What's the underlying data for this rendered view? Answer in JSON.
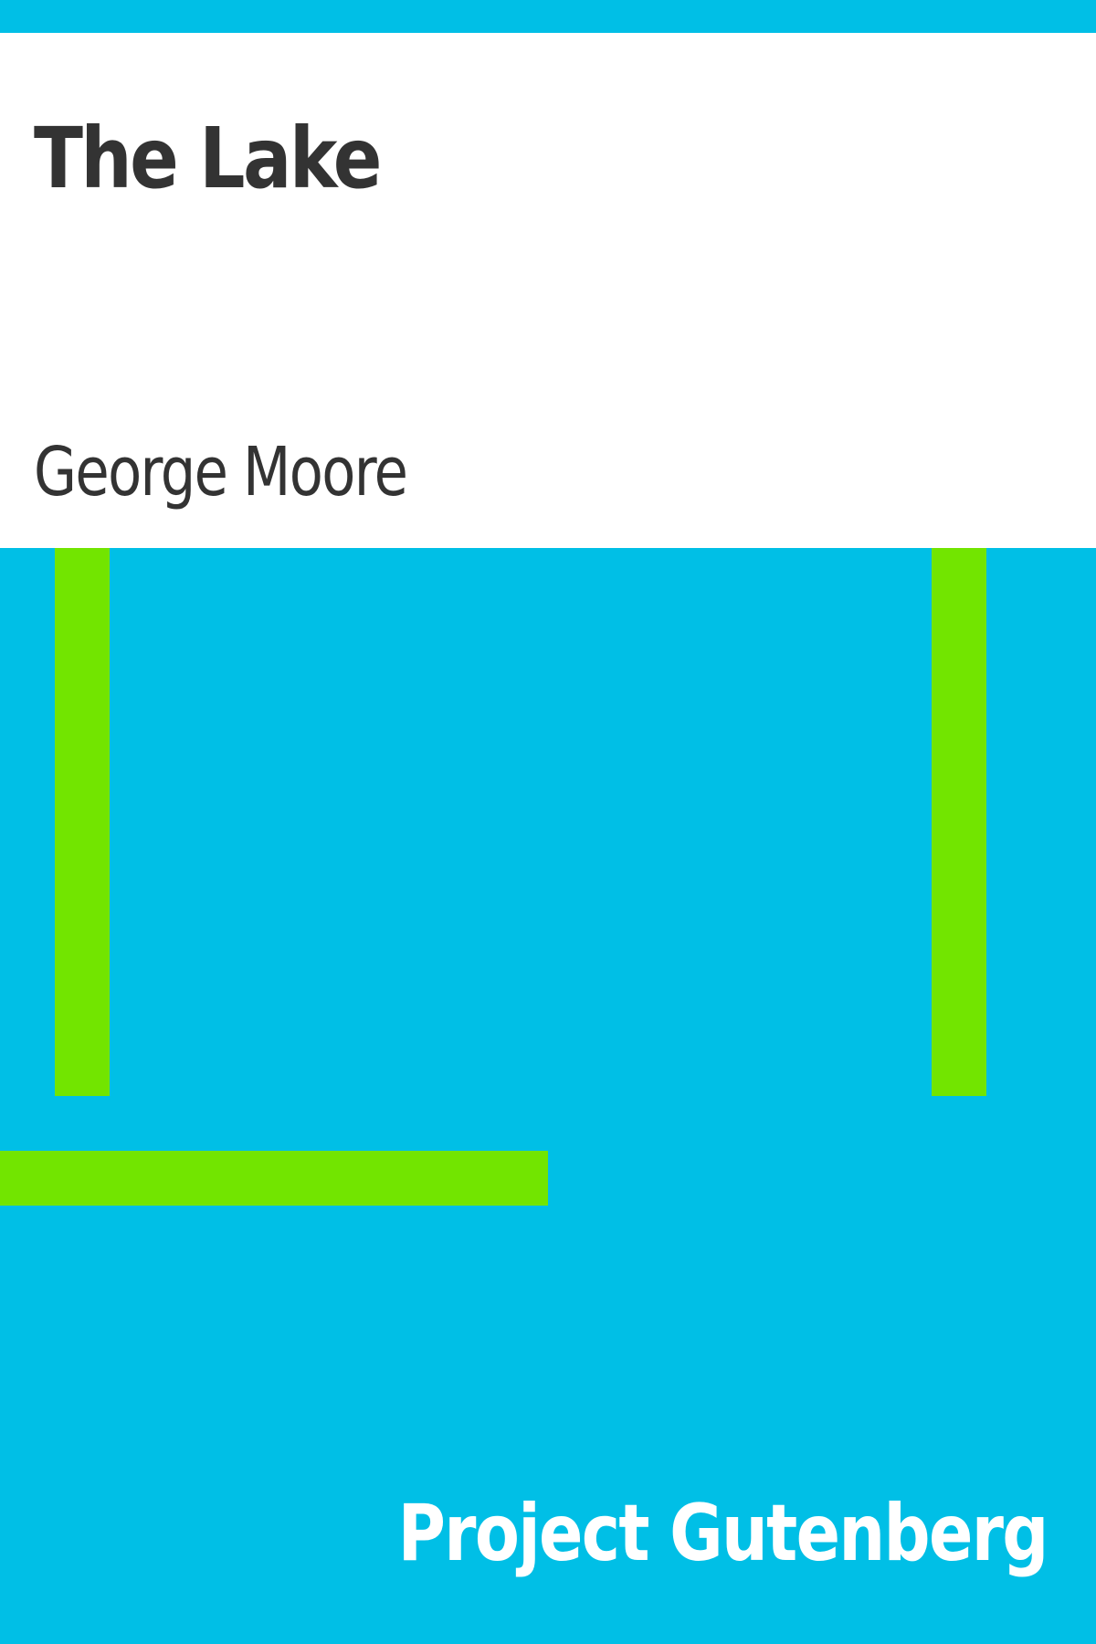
{
  "cover": {
    "title": "The Lake",
    "author": "George Moore",
    "publisher": "Project Gutenberg"
  },
  "colors": {
    "background": "#00bfe6",
    "panel": "#ffffff",
    "accent_bars": "#72e500",
    "text_dark": "#333333",
    "text_light": "#ffffff"
  }
}
